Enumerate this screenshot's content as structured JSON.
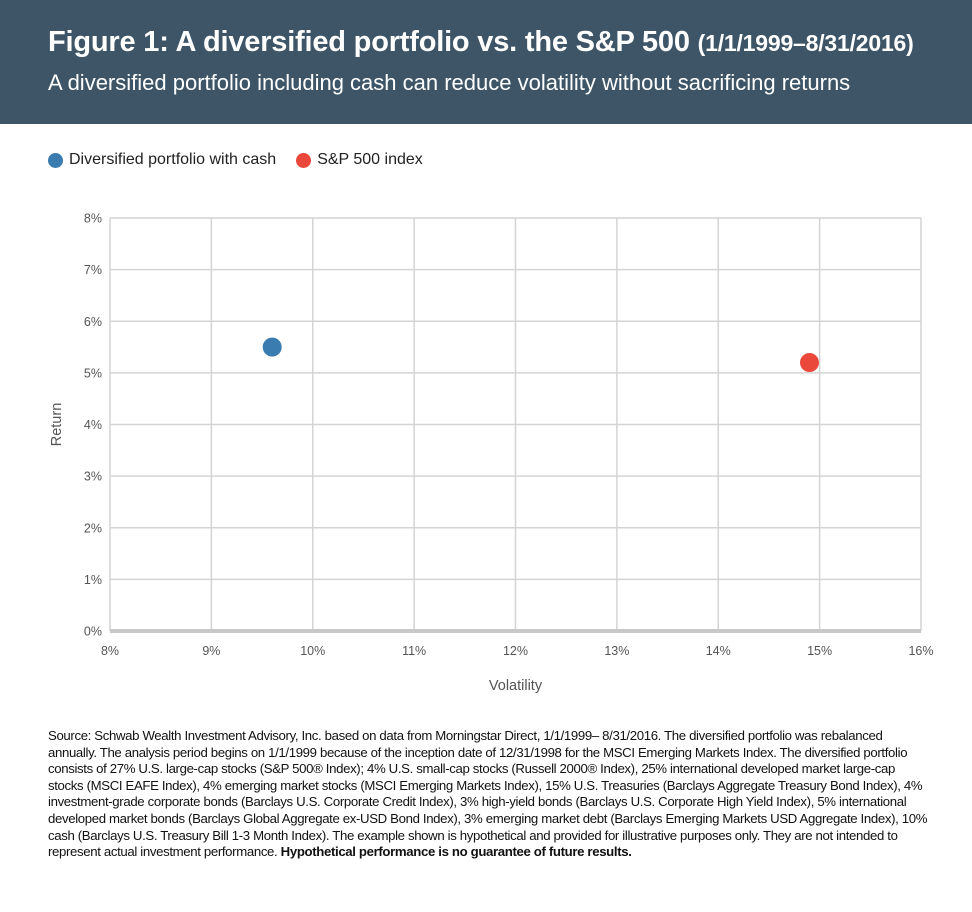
{
  "header": {
    "title_main": "Figure 1: A diversified portfolio vs. the S&P 500",
    "title_dates": "(1/1/1999–8/31/2016)",
    "subtitle": "A diversified portfolio including cash can reduce volatility without sacrificing returns"
  },
  "colors": {
    "header_bg": "#3d5567",
    "diversified": "#3a7bb0",
    "sp500": "#e9483a",
    "grid": "#d4d4d4",
    "baseline": "#c8c8c8"
  },
  "chart_data": {
    "type": "scatter",
    "xlabel": "Volatility",
    "ylabel": "Return",
    "xlim": [
      8,
      16
    ],
    "ylim": [
      0,
      8
    ],
    "x_ticks": [
      "8%",
      "9%",
      "10%",
      "11%",
      "12%",
      "13%",
      "14%",
      "15%",
      "16%"
    ],
    "y_ticks": [
      "0%",
      "1%",
      "2%",
      "3%",
      "4%",
      "5%",
      "6%",
      "7%",
      "8%"
    ],
    "grid": true,
    "legend_position": "top-left",
    "series": [
      {
        "name": "Diversified portfolio with cash",
        "color": "#3a7bb0",
        "points": [
          {
            "x": 9.6,
            "y": 5.5
          }
        ]
      },
      {
        "name": "S&P 500 index",
        "color": "#e9483a",
        "points": [
          {
            "x": 14.9,
            "y": 5.2
          }
        ]
      }
    ]
  },
  "footnote": {
    "text": "Source: Schwab Wealth Investment Advisory, Inc. based on data from Morningstar Direct, 1/1/1999– 8/31/2016. The diversified portfolio was rebalanced annually. The analysis period begins on 1/1/1999 because of the inception date of 12/31/1998 for the MSCI Emerging Markets Index. The diversified portfolio consists of 27% U.S. large-cap stocks (S&P 500® Index); 4% U.S. small-cap stocks (Russell 2000® Index), 25% international developed market large-cap stocks (MSCI EAFE Index), 4% emerging market stocks (MSCI Emerging Markets Index),  15% U.S. Treasuries (Barclays Aggregate Treasury Bond Index), 4% investment-grade corporate bonds (Barclays U.S. Corporate Credit Index), 3% high-yield bonds (Barclays U.S. Corporate High Yield Index), 5% international developed market bonds (Barclays Global Aggregate ex-USD Bond Index), 3% emerging market debt (Barclays Emerging Markets USD Aggregate Index), 10% cash (Barclays U.S. Treasury Bill 1-3 Month Index). The example shown is hypothetical and provided for illustrative purposes only. They are not intended to represent actual investment performance. ",
    "bold_text": "Hypothetical performance is no guarantee of future results."
  }
}
